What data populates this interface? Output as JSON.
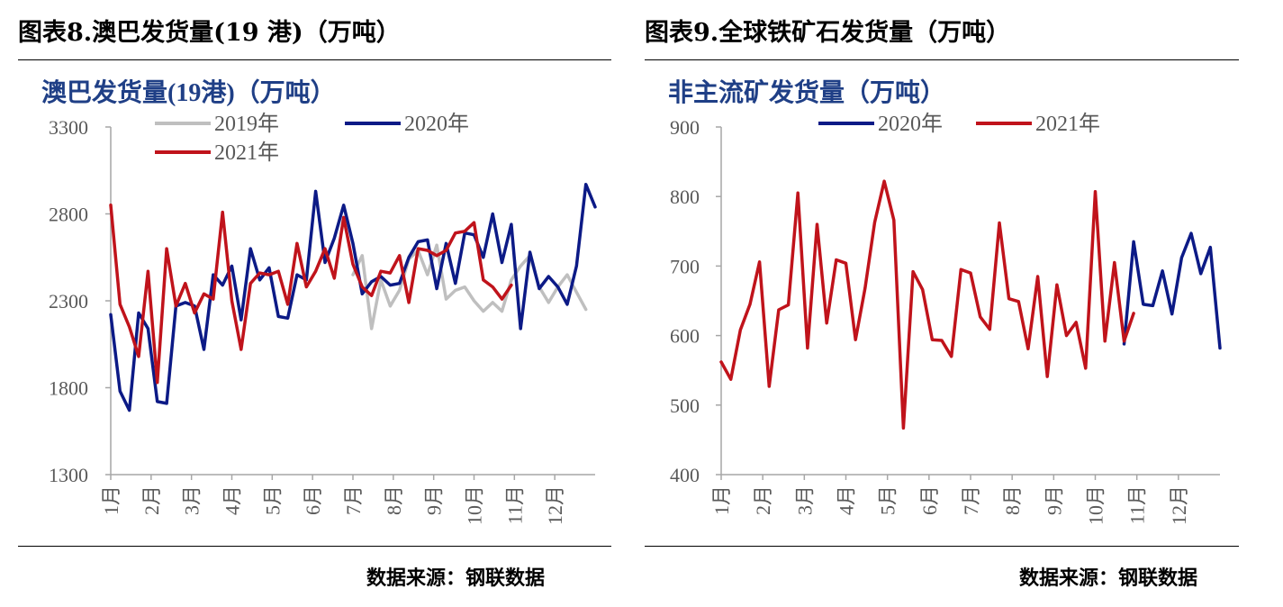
{
  "panels": [
    {
      "figure_title": "图表8.澳巴发货量(19 港)（万吨）",
      "source": "数据来源：钢联数据"
    },
    {
      "figure_title": "图表9.全球铁矿石发货量（万吨）",
      "source": "数据来源：钢联数据"
    }
  ],
  "colors": {
    "title": "#1f3f86",
    "axis": "#a6a6a6",
    "tick_text": "#595959",
    "series_2019": "#bfbfbf",
    "series_2020": "#0c1a86",
    "series_2021": "#c0131b"
  },
  "chart_data": [
    {
      "type": "line",
      "title": "澳巴发货量(19港)（万吨）",
      "xlabel": "",
      "ylabel": "",
      "ylim": [
        1300,
        3300
      ],
      "yticks": [
        1300,
        1800,
        2300,
        2800,
        3300
      ],
      "x_tick_labels": [
        "1月",
        "2月",
        "3月",
        "4月",
        "5月",
        "6月",
        "7月",
        "8月",
        "9月",
        "10月",
        "11月",
        "12月"
      ],
      "x_unit": "week of year (1-53)",
      "legend_position": "top",
      "grid": false,
      "series": [
        {
          "name": "2019年",
          "x": [
            27,
            28,
            29,
            30,
            31,
            32,
            33,
            34,
            35,
            36,
            37,
            38,
            39,
            40,
            41,
            42,
            43,
            44,
            45,
            46,
            47,
            48,
            49,
            50,
            51,
            52
          ],
          "values": [
            2450,
            2560,
            2140,
            2420,
            2270,
            2360,
            2540,
            2590,
            2450,
            2620,
            2310,
            2360,
            2380,
            2300,
            2240,
            2290,
            2240,
            2420,
            2500,
            2560,
            2380,
            2290,
            2380,
            2450,
            2350,
            2250
          ]
        },
        {
          "name": "2020年",
          "x": [
            1,
            2,
            3,
            4,
            5,
            6,
            7,
            8,
            9,
            10,
            11,
            12,
            13,
            14,
            15,
            16,
            17,
            18,
            19,
            20,
            21,
            22,
            23,
            24,
            25,
            26,
            27,
            28,
            29,
            30,
            31,
            32,
            33,
            34,
            35,
            36,
            37,
            38,
            39,
            40,
            41,
            42,
            43,
            44,
            45,
            46,
            47,
            48,
            49,
            50,
            51,
            52,
            53
          ],
          "values": [
            2220,
            1780,
            1670,
            2230,
            2140,
            1720,
            1710,
            2270,
            2290,
            2270,
            2020,
            2450,
            2390,
            2500,
            2190,
            2600,
            2420,
            2490,
            2210,
            2200,
            2450,
            2420,
            2930,
            2520,
            2660,
            2850,
            2630,
            2340,
            2410,
            2440,
            2390,
            2400,
            2550,
            2640,
            2650,
            2370,
            2630,
            2400,
            2690,
            2680,
            2550,
            2800,
            2520,
            2740,
            2140,
            2580,
            2370,
            2440,
            2380,
            2280,
            2500,
            2970,
            2840
          ]
        },
        {
          "name": "2021年",
          "x": [
            1,
            2,
            3,
            4,
            5,
            6,
            7,
            8,
            9,
            10,
            11,
            12,
            13,
            14,
            15,
            16,
            17,
            18,
            19,
            20,
            21,
            22,
            23,
            24,
            25,
            26,
            27,
            28,
            29,
            30,
            31,
            32,
            33,
            34,
            35,
            36,
            37,
            38,
            39,
            40,
            41,
            42,
            43,
            44
          ],
          "values": [
            2850,
            2280,
            2150,
            1980,
            2470,
            1830,
            2600,
            2270,
            2400,
            2230,
            2340,
            2310,
            2810,
            2300,
            2020,
            2400,
            2460,
            2450,
            2470,
            2280,
            2630,
            2380,
            2470,
            2600,
            2430,
            2780,
            2510,
            2380,
            2330,
            2470,
            2460,
            2560,
            2290,
            2600,
            2590,
            2560,
            2590,
            2690,
            2700,
            2750,
            2420,
            2380,
            2310,
            2390
          ]
        }
      ]
    },
    {
      "type": "line",
      "title": "非主流矿发货量（万吨）",
      "xlabel": "",
      "ylabel": "",
      "ylim": [
        400,
        900
      ],
      "yticks": [
        400,
        500,
        600,
        700,
        800,
        900
      ],
      "x_tick_labels": [
        "1月",
        "2月",
        "3月",
        "4月",
        "5月",
        "6月",
        "7月",
        "8月",
        "9月",
        "10月",
        "11月",
        "12月"
      ],
      "x_unit": "week of year (1-53)",
      "legend_position": "top",
      "grid": false,
      "series": [
        {
          "name": "2020年",
          "x": [
            43,
            44,
            45,
            46,
            47,
            48,
            49,
            50,
            51,
            52,
            53
          ],
          "values": [
            588,
            735,
            645,
            643,
            693,
            631,
            712,
            747,
            689,
            727,
            582
          ]
        },
        {
          "name": "2021年",
          "x": [
            1,
            2,
            3,
            4,
            5,
            6,
            7,
            8,
            9,
            10,
            11,
            12,
            13,
            14,
            15,
            16,
            17,
            18,
            19,
            20,
            21,
            22,
            23,
            24,
            25,
            26,
            27,
            28,
            29,
            30,
            31,
            32,
            33,
            34,
            35,
            36,
            37,
            38,
            39,
            40,
            41,
            42,
            43,
            44
          ],
          "values": [
            562,
            537,
            608,
            645,
            706,
            527,
            637,
            644,
            805,
            582,
            760,
            618,
            709,
            704,
            594,
            668,
            763,
            822,
            766,
            467,
            692,
            666,
            594,
            593,
            570,
            695,
            690,
            627,
            609,
            762,
            653,
            649,
            581,
            685,
            541,
            673,
            600,
            619,
            553,
            807,
            592,
            705,
            592,
            632
          ]
        }
      ]
    }
  ]
}
